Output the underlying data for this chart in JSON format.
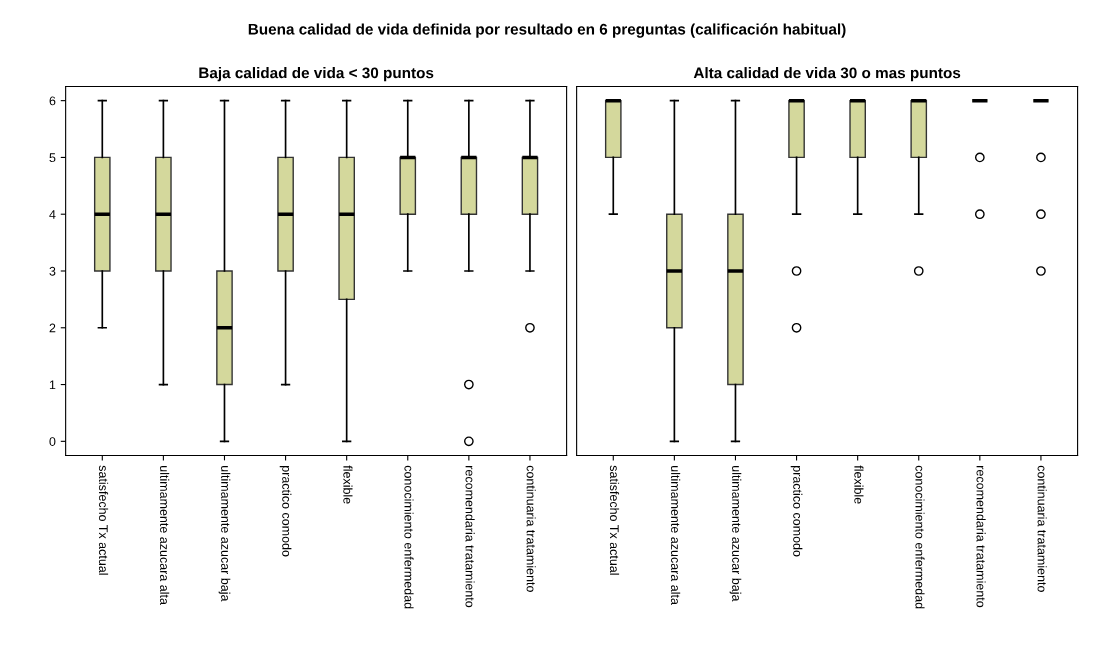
{
  "chart_data": [
    {
      "type": "box",
      "title": "Baja calidad de vida < 30 puntos",
      "annotations": [
        "Buena calidad de vida definida por resultado en 6 preguntas (calificación habitual)"
      ],
      "categories": [
        "satisfecho Tx actual",
        "ultimamente azucara alta",
        "ultimamente azucar baja",
        "practico comodo",
        "flexible",
        "conocimiento enfermedad",
        "recomendaria tratamiento",
        "continuaria tratamiento"
      ],
      "color": "#d4d89c",
      "ylim": [
        -0.25,
        6.25
      ],
      "yticks": [
        0,
        1,
        2,
        3,
        4,
        5,
        6
      ],
      "boxes": [
        {
          "low": 2,
          "q1": 3,
          "median": 4,
          "q3": 5,
          "high": 6
        },
        {
          "low": 1,
          "q1": 3,
          "median": 4,
          "q3": 5,
          "high": 6
        },
        {
          "low": 0,
          "q1": 1,
          "median": 2,
          "q3": 3,
          "high": 6
        },
        {
          "low": 1,
          "q1": 3,
          "median": 4,
          "q3": 5,
          "high": 6
        },
        {
          "low": 0,
          "q1": 2.5,
          "median": 4,
          "q3": 5,
          "high": 6
        },
        {
          "low": 3,
          "q1": 4,
          "median": 5,
          "q3": 5,
          "high": 6
        },
        {
          "low": 3,
          "q1": 4,
          "median": 5,
          "q3": 5,
          "high": 6,
          "outliers": [
            1,
            0
          ]
        },
        {
          "low": 3,
          "q1": 4,
          "median": 5,
          "q3": 5,
          "high": 6,
          "outliers": [
            2
          ]
        }
      ]
    },
    {
      "type": "box",
      "title": "Alta calidad de vida 30 o mas puntos",
      "tick_labels": "x",
      "categories": [
        "satisfecho Tx actual",
        "ultimamente azucara alta",
        "ultimamente azucar baja",
        "practico comodo",
        "flexible",
        "conocimiento enfermedad",
        "recomendaria tratamiento",
        "continuaria tratamiento"
      ],
      "color": "#d4d89c",
      "ylim": [
        -0.25,
        6.25
      ],
      "boxes": [
        {
          "low": 4,
          "q1": 5,
          "median": 6,
          "q3": 6,
          "high": 6
        },
        {
          "low": 0,
          "q1": 2,
          "median": 3,
          "q3": 4,
          "high": 6
        },
        {
          "low": 0,
          "q1": 1,
          "median": 3,
          "q3": 4,
          "high": 6
        },
        {
          "low": 4,
          "q1": 5,
          "median": 6,
          "q3": 6,
          "high": 6,
          "outliers": [
            3,
            2
          ]
        },
        {
          "low": 4,
          "q1": 5,
          "median": 6,
          "q3": 6,
          "high": 6
        },
        {
          "low": 4,
          "q1": 5,
          "median": 6,
          "q3": 6,
          "high": 6,
          "outliers": [
            3
          ]
        },
        {
          "low": 6,
          "q1": 6,
          "median": 6,
          "q3": 6,
          "high": 6,
          "outliers": [
            5,
            4
          ]
        },
        {
          "low": 6,
          "q1": 6,
          "median": 6,
          "q3": 6,
          "high": 6,
          "outliers": [
            5,
            4,
            3
          ]
        }
      ]
    }
  ]
}
